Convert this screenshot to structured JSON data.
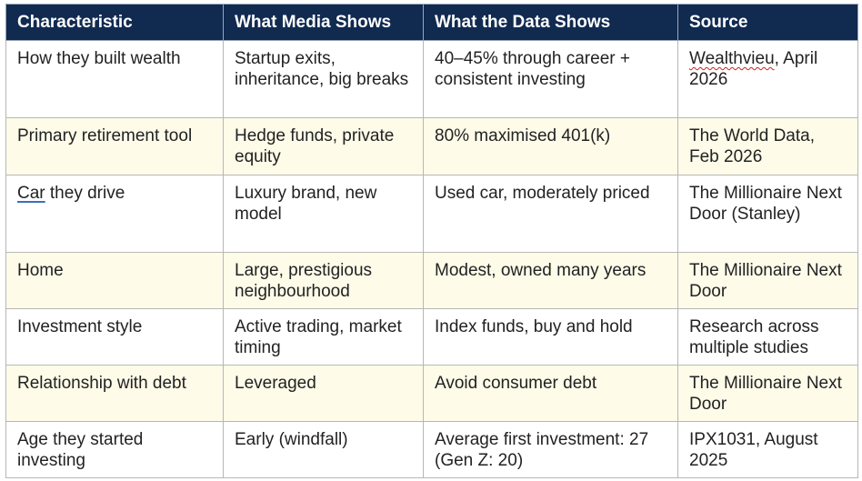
{
  "table": {
    "headers": [
      "Characteristic",
      "What Media Shows",
      "What the Data Shows",
      "Source"
    ],
    "rows": [
      {
        "characteristic": "How they built wealth",
        "media": "Startup exits, inheritance, big breaks",
        "data": "40–45% through career + consistent investing",
        "source_flagged": "Wealthvieu",
        "source_rest": ", April 2026"
      },
      {
        "characteristic": "Primary retirement tool",
        "media": "Hedge funds, private equity",
        "data": "80% maximised 401(k)",
        "source": "The World Data, Feb 2026"
      },
      {
        "characteristic_flagged": "Car",
        "characteristic_rest": " they drive",
        "media": "Luxury brand, new model",
        "data": "Used car, moderately priced",
        "source": "The Millionaire Next Door (Stanley)"
      },
      {
        "characteristic": "Home",
        "media": "Large, prestigious neighbourhood",
        "data": "Modest, owned many years",
        "source": "The Millionaire Next Door"
      },
      {
        "characteristic": "Investment style",
        "media": "Active trading, market timing",
        "data": "Index funds, buy and hold",
        "source": "Research across multiple studies"
      },
      {
        "characteristic": "Relationship with debt",
        "media": "Leveraged",
        "data": "Avoid consumer debt",
        "source": "The Millionaire Next Door"
      },
      {
        "characteristic": "Age they started investing",
        "media": "Early (windfall)",
        "data": "Average first investment: 27 (Gen Z: 20)",
        "source": "IPX1031, August 2025"
      }
    ]
  },
  "colors": {
    "header_bg": "#112a50",
    "header_text": "#ffffff",
    "alt_row_bg": "#fefbe9",
    "border": "#b7b7b7",
    "spellcheck_underline": "#d02020",
    "grammar_underline": "#3b6cc6"
  }
}
